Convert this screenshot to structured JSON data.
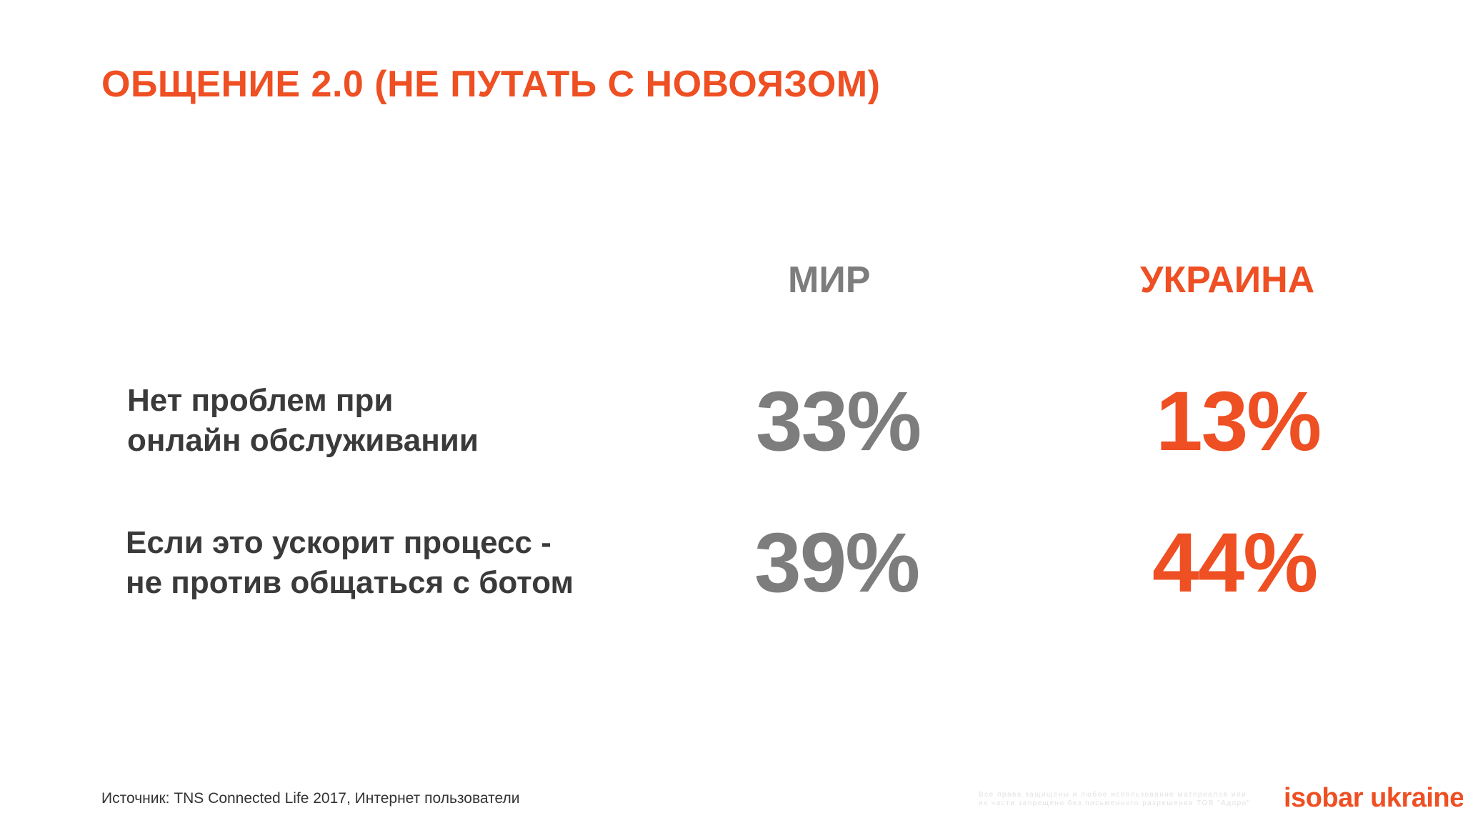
{
  "colors": {
    "accent": "#ee4f23",
    "gray": "#7d7d7d",
    "dark": "#3a3a3a",
    "source": "#333333",
    "faint": "#e2e2e2"
  },
  "title": "ОБЩЕНИЕ 2.0 (НЕ ПУТАТЬ С НОВОЯЗОМ)",
  "columns": {
    "world": "МИР",
    "ukraine": "УКРАИНА"
  },
  "rows": [
    {
      "label_lines": [
        "Нет проблем при",
        "онлайн обслуживании"
      ],
      "world": "33%",
      "ukraine": "13%"
    },
    {
      "label_lines": [
        "Если это ускорит процесс -",
        "не против общаться с ботом"
      ],
      "world": "39%",
      "ukraine": "44%"
    }
  ],
  "footer": {
    "source": "Источник: TNS Connected Life 2017, Интернет пользователи",
    "copyright_lines": [
      "Все права защищены и любое использование материалов или",
      "их части запрещено без письменного разрешения ТОВ \"Адпро\""
    ],
    "brand": "isobar ukraine"
  }
}
